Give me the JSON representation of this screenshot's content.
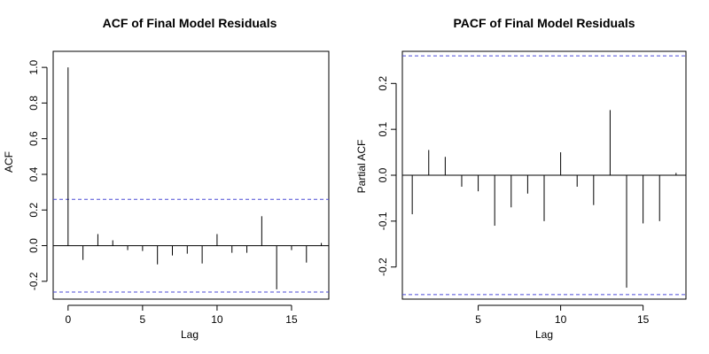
{
  "chart_data": [
    {
      "type": "bar",
      "title": "ACF of Final Model Residuals",
      "xlabel": "Lag",
      "ylabel": "ACF",
      "xlim": [
        -1,
        17.5
      ],
      "ylim": [
        -0.3,
        1.09
      ],
      "x_ticks": [
        0,
        5,
        10,
        15
      ],
      "y_ticks": [
        -0.2,
        0.0,
        0.2,
        0.4,
        0.6,
        0.8,
        1.0
      ],
      "y_tick_labels": [
        "-0.2",
        "0.0",
        "0.2",
        "0.4",
        "0.6",
        "0.8",
        "1.0"
      ],
      "confidence_bounds": [
        0.26,
        -0.26
      ],
      "bound_color": "#4a4ad6",
      "series": [
        {
          "lags": [
            0,
            1,
            2,
            3,
            4,
            5,
            6,
            7,
            8,
            9,
            10,
            11,
            12,
            13,
            14,
            15,
            16,
            17
          ],
          "values": [
            1.0,
            -0.08,
            0.065,
            0.03,
            -0.025,
            -0.03,
            -0.105,
            -0.055,
            -0.045,
            -0.1,
            0.065,
            -0.04,
            -0.04,
            0.165,
            -0.245,
            -0.025,
            -0.095,
            0.015
          ]
        }
      ]
    },
    {
      "type": "bar",
      "title": "PACF of Final Model Residuals",
      "xlabel": "Lag",
      "ylabel": "Partial ACF",
      "xlim": [
        0.4,
        17.6
      ],
      "ylim": [
        -0.27,
        0.27
      ],
      "x_ticks": [
        5,
        10,
        15
      ],
      "y_ticks": [
        -0.2,
        -0.1,
        0.0,
        0.1,
        0.2
      ],
      "y_tick_labels": [
        "-0.2",
        "-0.1",
        "0.0",
        "0.1",
        "0.2"
      ],
      "confidence_bounds": [
        0.26,
        -0.26
      ],
      "bound_color": "#4a4ad6",
      "series": [
        {
          "lags": [
            1,
            2,
            3,
            4,
            5,
            6,
            7,
            8,
            9,
            10,
            11,
            12,
            13,
            14,
            15,
            16,
            17
          ],
          "values": [
            -0.085,
            0.055,
            0.04,
            -0.025,
            -0.035,
            -0.11,
            -0.07,
            -0.04,
            -0.1,
            0.05,
            -0.025,
            -0.065,
            0.142,
            -0.245,
            -0.105,
            -0.1,
            0.005
          ]
        }
      ]
    }
  ]
}
